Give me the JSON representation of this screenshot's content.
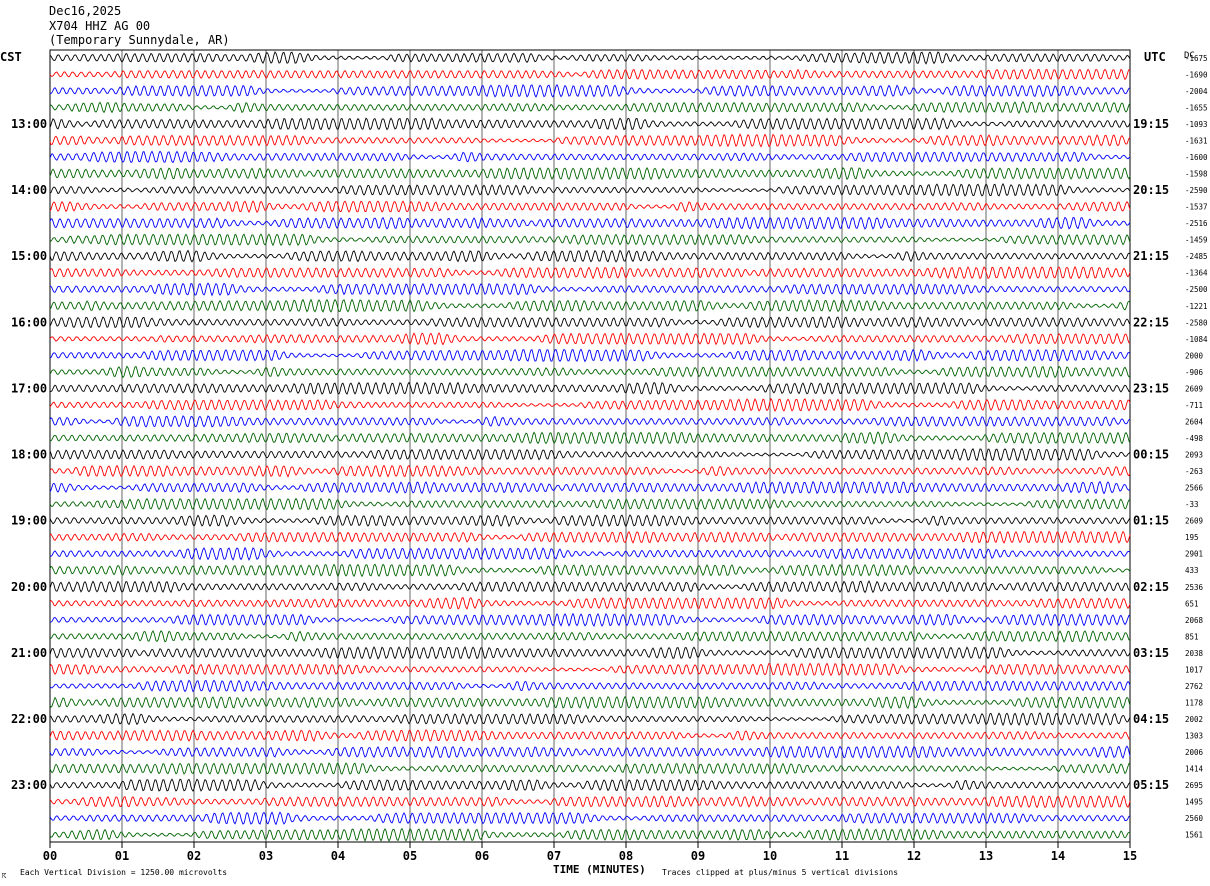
{
  "header": {
    "date": "Dec16,2025",
    "station": "X704 HHZ AG 00",
    "location": "(Temporary Sunnydale, AR)"
  },
  "labels": {
    "left_timezone": "CST",
    "right_timezone": "UTC",
    "right_column": "DC",
    "x_axis_title": "TIME (MINUTES)",
    "scale_note": "Each Vertical Division = 1250.00 microvolts",
    "clip_note": "Traces clipped at plus/minus 5 vertical divisions"
  },
  "chart_data": {
    "type": "line",
    "chart_kind": "helicorder",
    "xlabel": "TIME (MINUTES)",
    "xlim": [
      0,
      15
    ],
    "x_ticks": [
      "00",
      "01",
      "02",
      "03",
      "04",
      "05",
      "06",
      "07",
      "08",
      "09",
      "10",
      "11",
      "12",
      "13",
      "14",
      "15"
    ],
    "trace_colors": [
      "#000000",
      "#ff0000",
      "#0000ff",
      "#006400"
    ],
    "traces_per_hour": 4,
    "minutes_per_trace": 15,
    "grid": true,
    "left_hour_labels": [
      "13:00",
      "14:00",
      "15:00",
      "16:00",
      "17:00",
      "18:00",
      "19:00",
      "20:00",
      "21:00",
      "22:00",
      "23:00"
    ],
    "right_hour_labels": [
      "19:15",
      "20:15",
      "21:15",
      "22:15",
      "23:15",
      "00:15",
      "01:15",
      "02:15",
      "03:15",
      "04:15",
      "05:15"
    ],
    "trace_offsets_dc": [
      "-1675",
      "-1690",
      "-2004",
      "-1655",
      "-1093",
      "-1631",
      "-1600",
      "-1598",
      "-2590",
      "-1537",
      "-2516",
      "-1459",
      "-2485",
      "-1364",
      "-2500",
      "-1221",
      "-2580",
      "-1084",
      "2000",
      "-906",
      "2609",
      "-711",
      "2604",
      "-498",
      "2093",
      "-263",
      "2566",
      "-33",
      "2609",
      "195",
      "2901",
      "433",
      "2536",
      "651",
      "2068",
      "851",
      "2038",
      "1017",
      "2762",
      "1178",
      "2002",
      "1303",
      "2006",
      "1414",
      "2695",
      "1495",
      "2560",
      "1561"
    ]
  }
}
